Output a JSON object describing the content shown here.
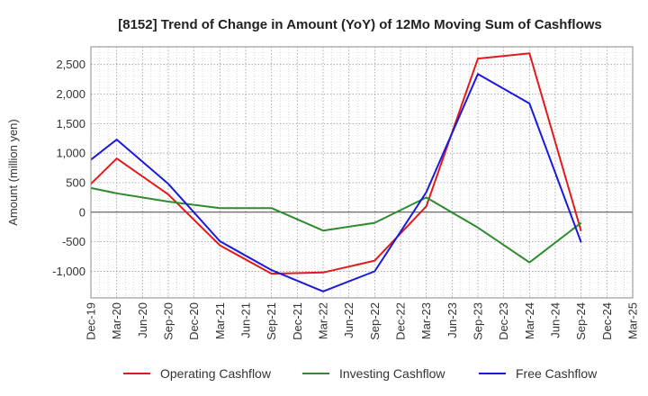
{
  "chart_data": {
    "type": "line",
    "title": "[8152]  Trend of Change in Amount (YoY) of 12Mo Moving Sum of Cashflows",
    "xlabel": "",
    "ylabel": "Amount (million yen)",
    "ylim": [
      -1450,
      2800
    ],
    "yticks": [
      -1000,
      -500,
      0,
      500,
      1000,
      1500,
      2000,
      2500
    ],
    "ytick_labels": [
      "-1,000",
      "-500",
      "0",
      "500",
      "1,000",
      "1,500",
      "2,000",
      "2,500"
    ],
    "categories": [
      "Dec-19",
      "Mar-20",
      "Jun-20",
      "Sep-20",
      "Dec-20",
      "Mar-21",
      "Jun-21",
      "Sep-21",
      "Dec-21",
      "Mar-22",
      "Jun-22",
      "Sep-22",
      "Dec-22",
      "Mar-23",
      "Jun-23",
      "Sep-23",
      "Dec-23",
      "Mar-24",
      "Jun-24",
      "Sep-24",
      "Dec-24",
      "Mar-25"
    ],
    "grid": true,
    "legend_position": "bottom",
    "series": [
      {
        "name": "Operating Cashflow",
        "color": "#e31a1c",
        "values": [
          480,
          910,
          null,
          300,
          null,
          -560,
          null,
          -1040,
          null,
          -1020,
          null,
          -820,
          null,
          100,
          null,
          2600,
          null,
          2690,
          null,
          -320,
          null,
          null
        ]
      },
      {
        "name": "Investing Cashflow",
        "color": "#2e8b2e",
        "values": [
          410,
          320,
          null,
          180,
          null,
          70,
          null,
          70,
          null,
          -310,
          null,
          -180,
          null,
          250,
          null,
          -260,
          null,
          -850,
          null,
          -180,
          null,
          null
        ]
      },
      {
        "name": "Free Cashflow",
        "color": "#1a1adb",
        "values": [
          890,
          1230,
          null,
          480,
          null,
          -490,
          null,
          -980,
          null,
          -1340,
          null,
          -1000,
          null,
          340,
          null,
          2340,
          null,
          1840,
          null,
          -510,
          null,
          null
        ]
      }
    ]
  }
}
